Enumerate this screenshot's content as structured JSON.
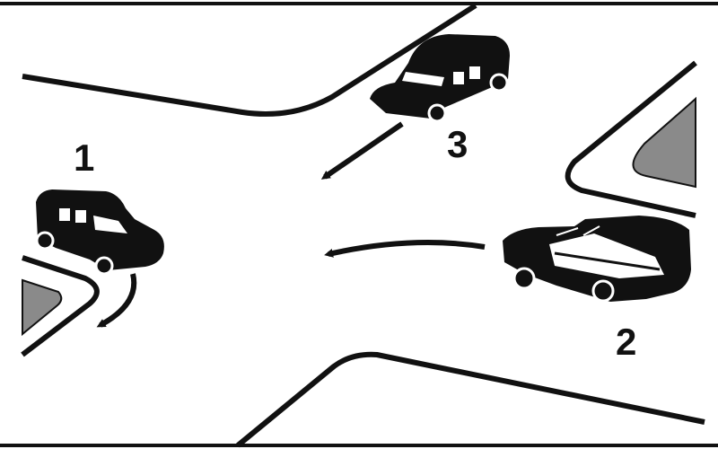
{
  "vehicles": [
    {
      "number": "1"
    },
    {
      "number": "2"
    },
    {
      "number": "3"
    }
  ],
  "colors": {
    "background": "#ffffff",
    "ink": "#111111",
    "sidewalk_fill": "#8a8a8a",
    "window": "#ffffff"
  }
}
